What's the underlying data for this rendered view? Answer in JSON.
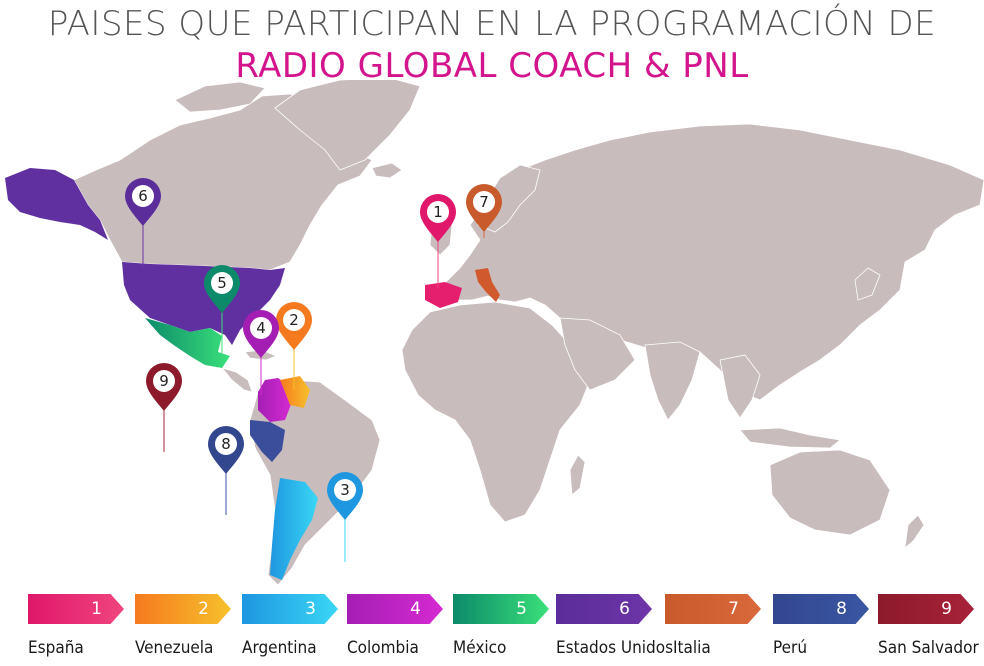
{
  "title": {
    "line1": "PAISES QUE PARTICIPAN EN LA PROGRAMACIÓN DE",
    "line2": "RADIO GLOBAL COACH & PNL"
  },
  "colors": {
    "land": "#c9bcbc",
    "title_line1": "#555555",
    "title_line2": "#d4148c"
  },
  "countries": [
    {
      "number": "1",
      "name": "España",
      "color_from": "#e0176a",
      "color_to": "#f0457e"
    },
    {
      "number": "2",
      "name": "Venezuela",
      "color_from": "#f57a1f",
      "color_to": "#f7c12b"
    },
    {
      "number": "3",
      "name": "Argentina",
      "color_from": "#1e96e0",
      "color_to": "#3ad7f5"
    },
    {
      "number": "4",
      "name": "Colombia",
      "color_from": "#a51eb4",
      "color_to": "#d52ad2"
    },
    {
      "number": "5",
      "name": "México",
      "color_from": "#0c8a6a",
      "color_to": "#3ae07a"
    },
    {
      "number": "6",
      "name": "Estados Unidos",
      "color_from": "#5b2d9a",
      "color_to": "#6e35a8"
    },
    {
      "number": "7",
      "name": "Italia",
      "color_from": "#c95a2c",
      "color_to": "#d9683a"
    },
    {
      "number": "8",
      "name": "Perú",
      "color_from": "#33478f",
      "color_to": "#3a56a3"
    },
    {
      "number": "9",
      "name": "San Salvador",
      "color_from": "#8c1a2a",
      "color_to": "#a8223a"
    }
  ]
}
